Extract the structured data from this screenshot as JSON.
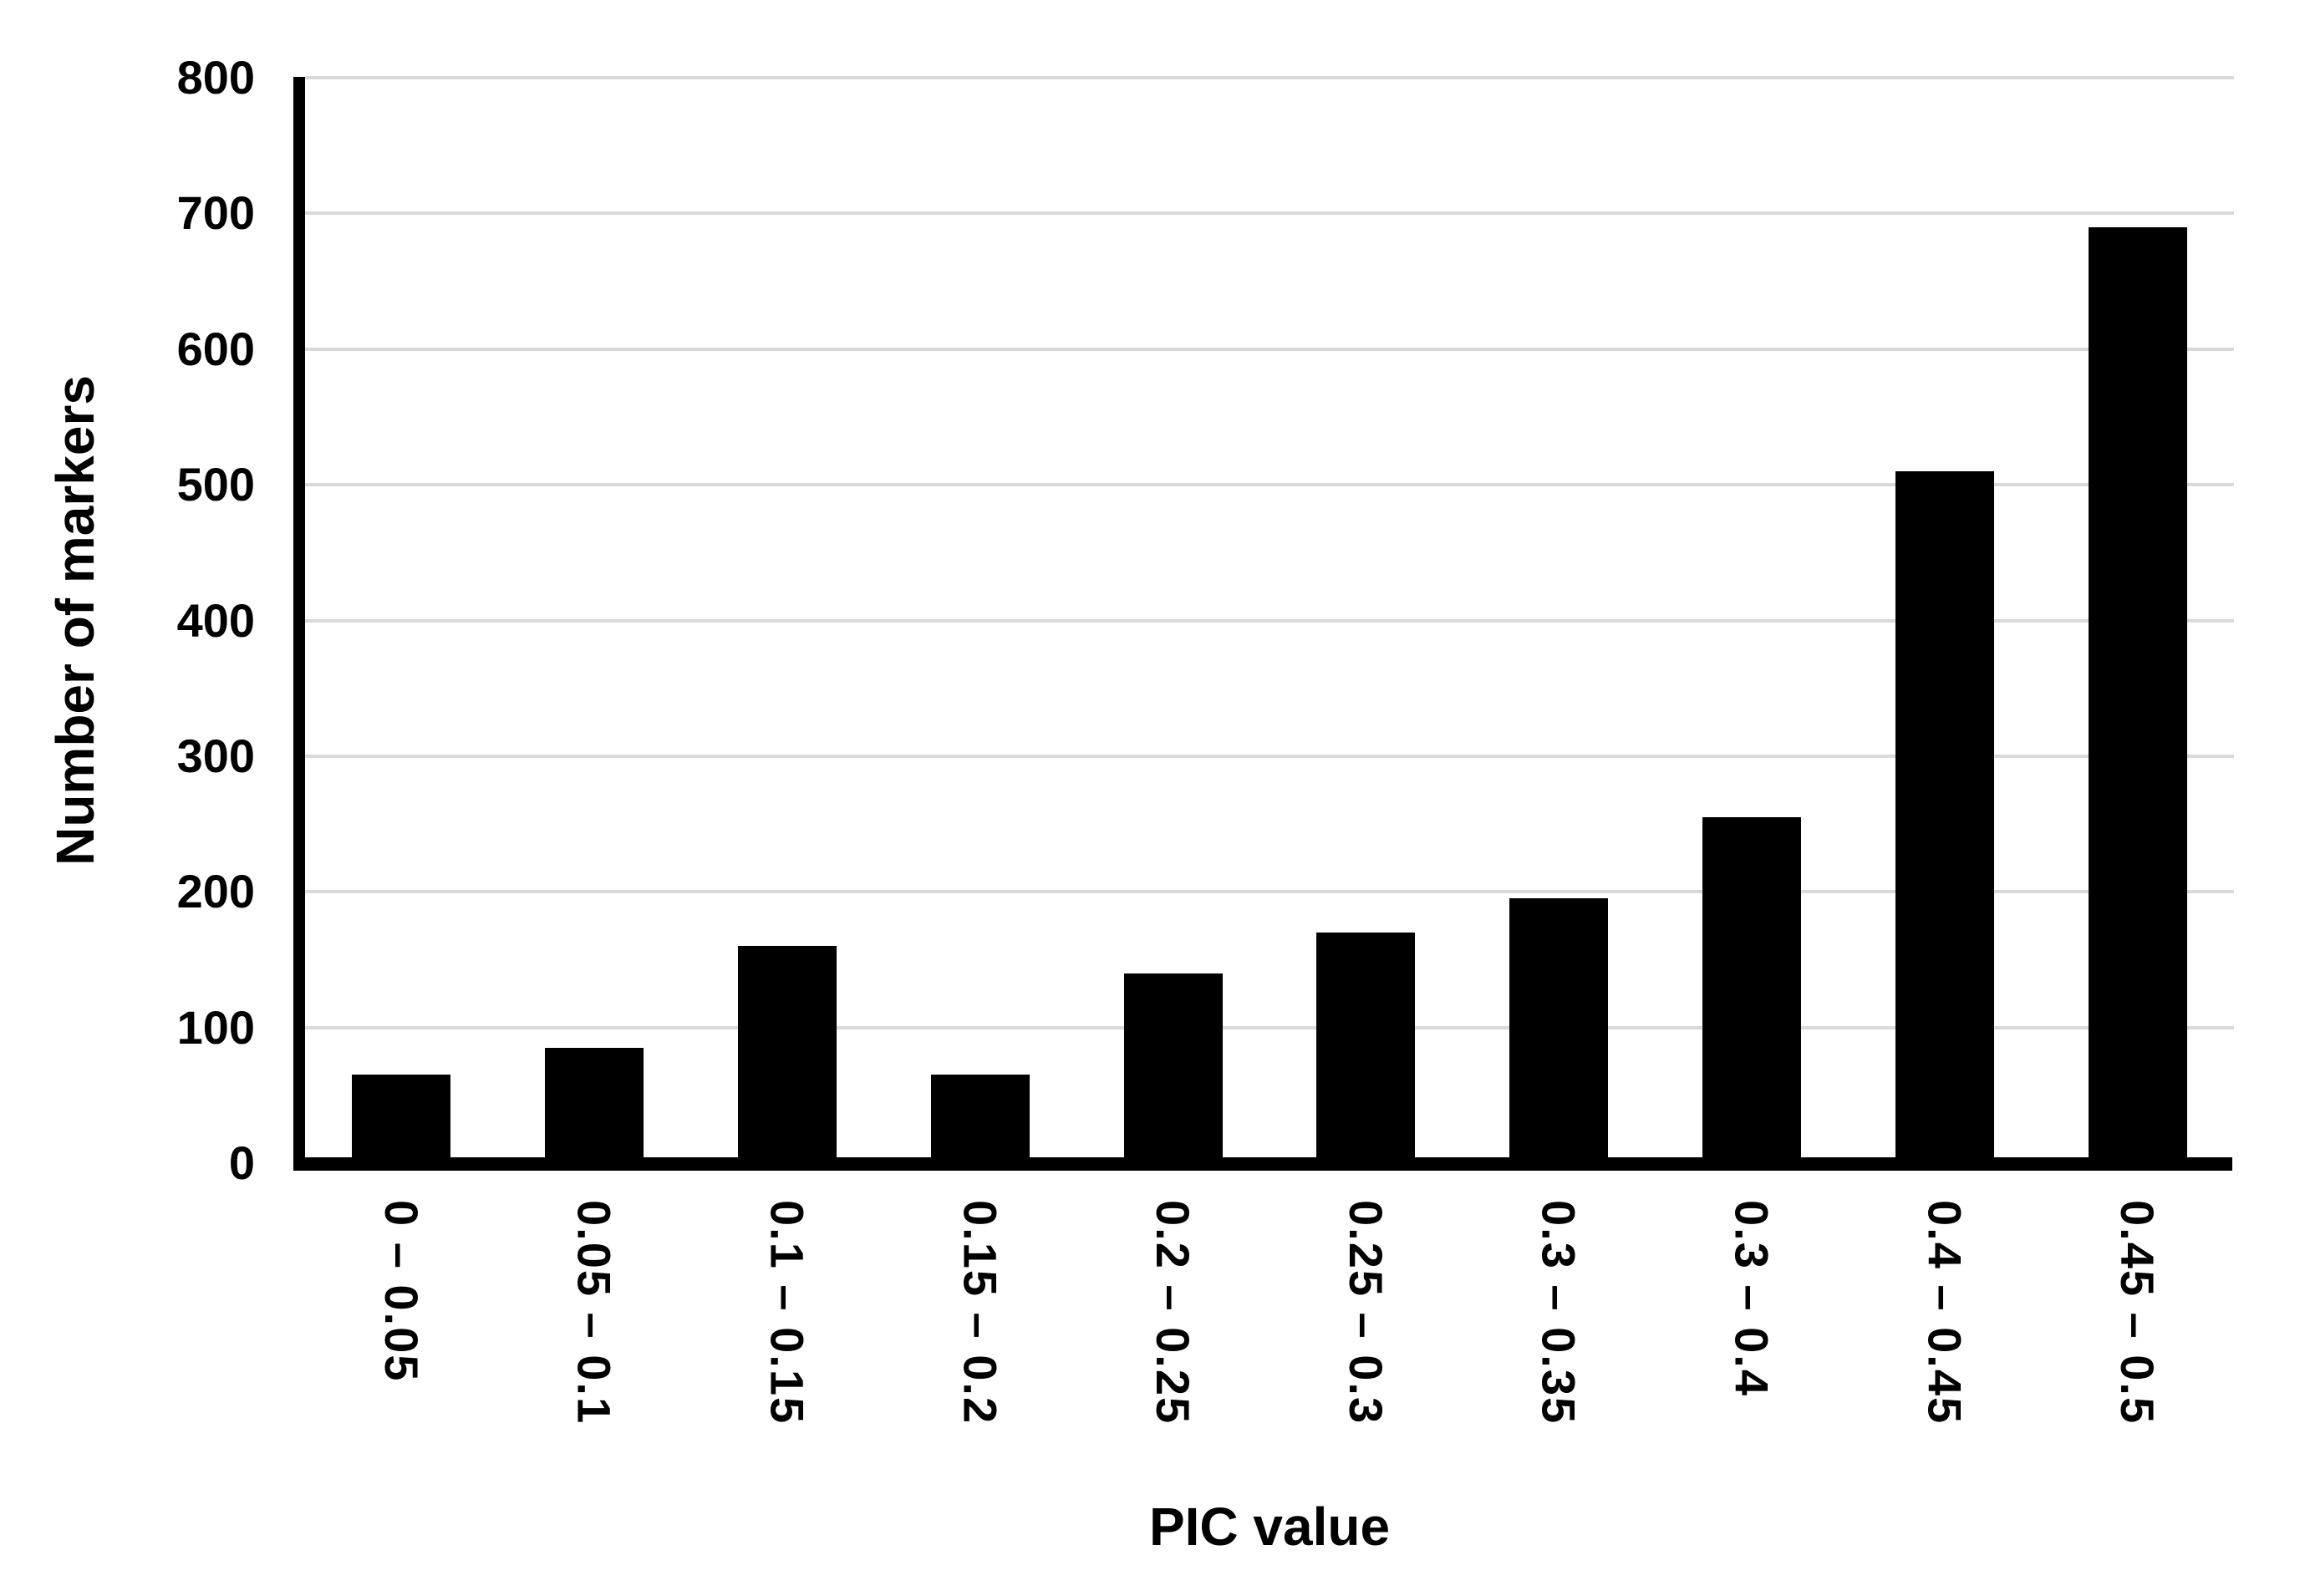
{
  "chart_data": {
    "type": "bar",
    "title": "",
    "xlabel": "PIC value",
    "ylabel": "Number of markers",
    "categories": [
      "0 – 0.05",
      "0.05 – 0.1",
      "0.1 – 0.15",
      "0.15 – 0.2",
      "0.2 – 0.25",
      "0.25 – 0.3",
      "0.3 – 0.35",
      "0.3 – 0.4",
      "0.4 – 0.45",
      "0.45 – 0.5"
    ],
    "values": [
      65,
      85,
      160,
      65,
      140,
      170,
      195,
      255,
      510,
      690
    ],
    "ylim": [
      0,
      800
    ],
    "y_ticks": [
      0,
      100,
      200,
      300,
      400,
      500,
      600,
      700,
      800
    ],
    "grid": true,
    "legend_position": "none",
    "bar_color": "#000000",
    "gridline_color": "#d9d9d9",
    "axis_color": "#000000",
    "background_color": "#ffffff"
  }
}
